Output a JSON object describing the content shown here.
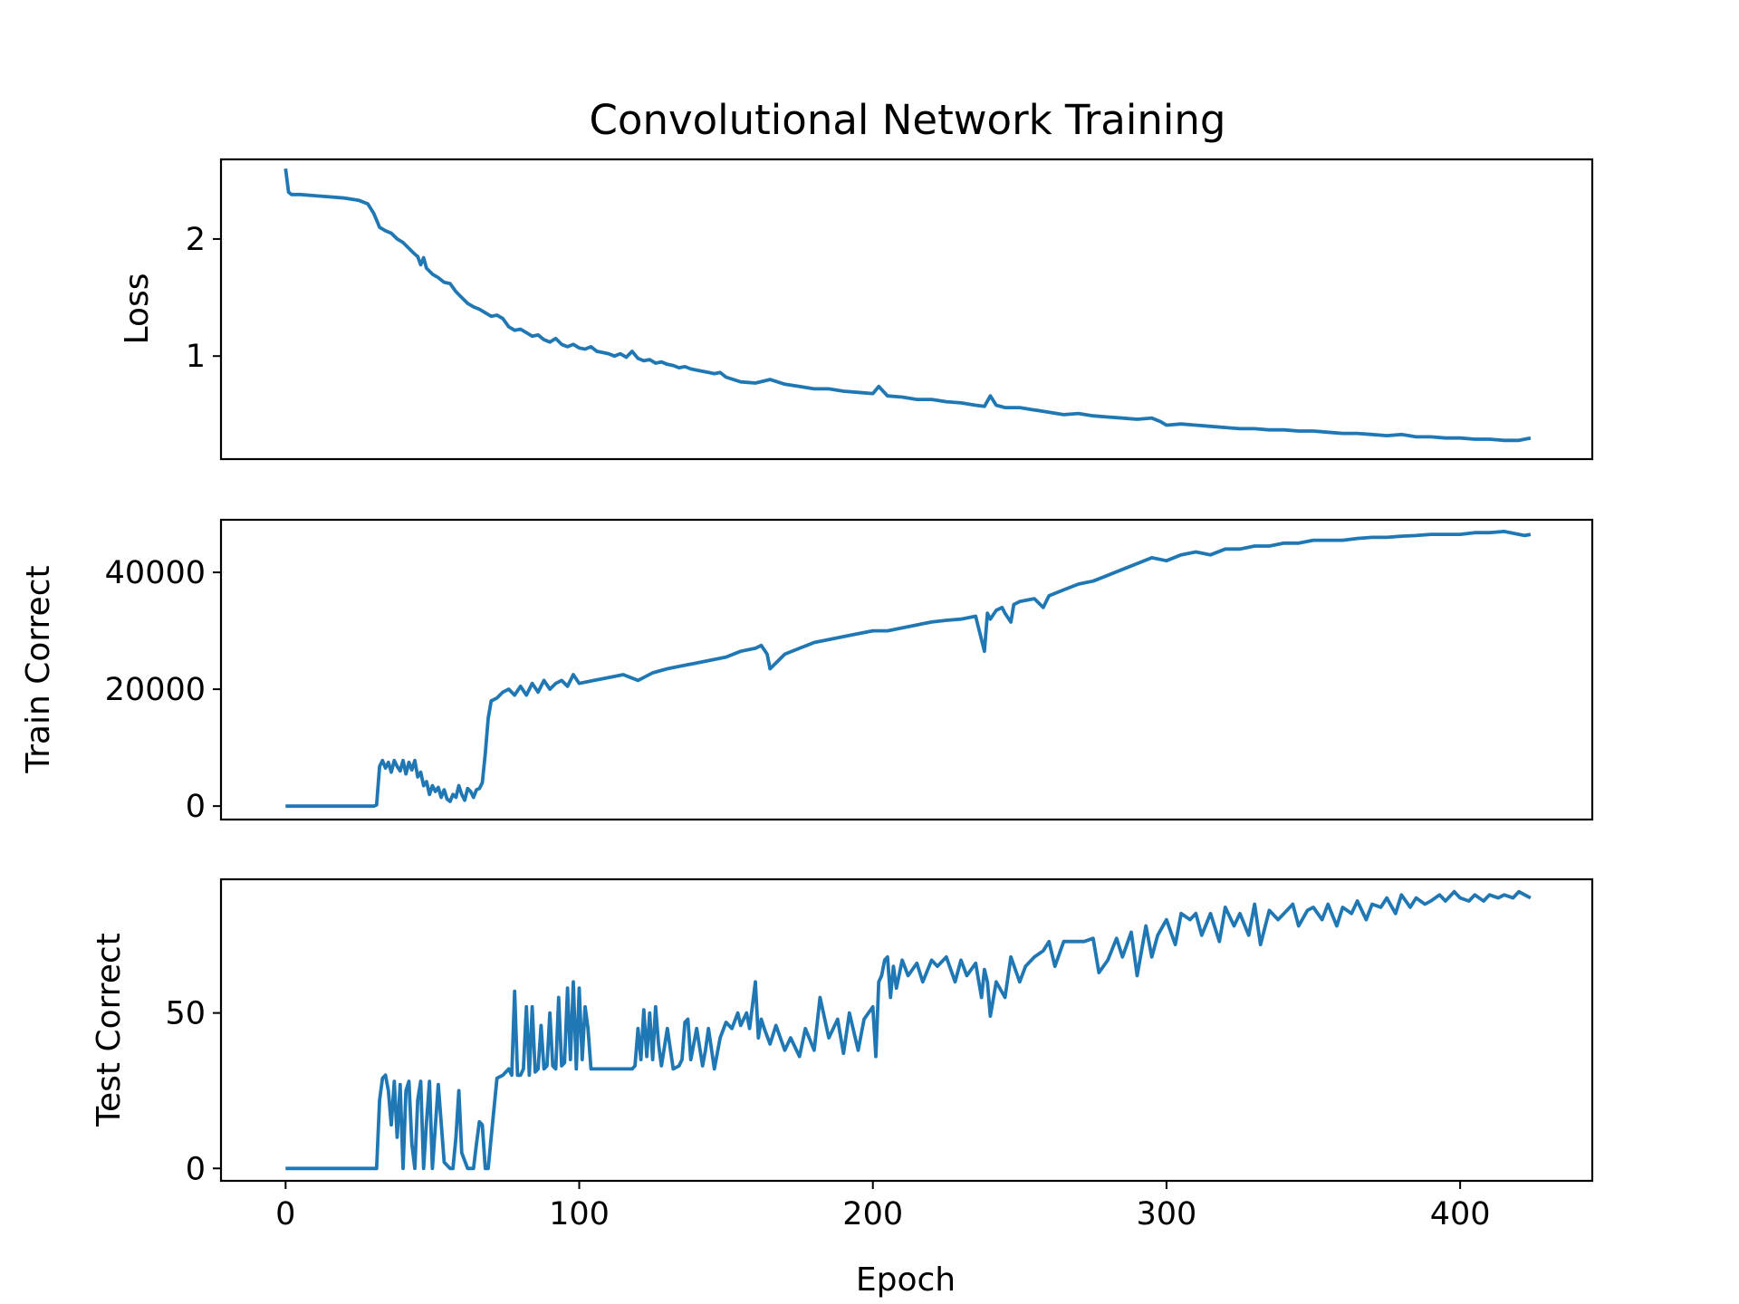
{
  "figure": {
    "title": "Convolutional Network Training",
    "xlabel": "Epoch",
    "line_color": "#1f77b4"
  },
  "chart_data": [
    {
      "type": "line",
      "title": "Convolutional Network Training",
      "xlabel": "",
      "ylabel": "Loss",
      "xlim": [
        -22,
        445
      ],
      "ylim": [
        0.12,
        2.68
      ],
      "xticks": [],
      "yticks": [
        1,
        2
      ],
      "ytick_labels": [
        "1",
        "2"
      ],
      "grid": false,
      "series": [
        {
          "x": [
            0,
            1,
            2,
            5,
            10,
            15,
            20,
            25,
            28,
            30,
            32,
            34,
            36,
            38,
            40,
            42,
            44,
            45,
            46,
            47,
            48,
            50,
            52,
            54,
            56,
            58,
            60,
            62,
            64,
            66,
            68,
            70,
            72,
            74,
            76,
            78,
            80,
            82,
            84,
            86,
            88,
            90,
            92,
            94,
            96,
            98,
            100,
            102,
            104,
            106,
            108,
            110,
            112,
            114,
            116,
            118,
            120,
            122,
            124,
            126,
            128,
            130,
            132,
            134,
            136,
            138,
            140,
            142,
            144,
            146,
            148,
            150,
            155,
            160,
            165,
            170,
            175,
            180,
            185,
            190,
            195,
            200,
            202,
            205,
            210,
            215,
            220,
            225,
            230,
            235,
            238,
            240,
            242,
            245,
            250,
            255,
            260,
            265,
            270,
            275,
            280,
            285,
            290,
            295,
            298,
            300,
            305,
            310,
            315,
            320,
            325,
            330,
            335,
            340,
            345,
            350,
            355,
            360,
            365,
            370,
            375,
            380,
            385,
            390,
            395,
            400,
            405,
            410,
            415,
            420,
            424
          ],
          "y": [
            2.6,
            2.4,
            2.38,
            2.38,
            2.37,
            2.36,
            2.35,
            2.33,
            2.3,
            2.22,
            2.1,
            2.07,
            2.05,
            2.0,
            1.97,
            1.92,
            1.87,
            1.85,
            1.78,
            1.84,
            1.75,
            1.7,
            1.67,
            1.63,
            1.62,
            1.55,
            1.5,
            1.45,
            1.42,
            1.4,
            1.37,
            1.34,
            1.35,
            1.32,
            1.25,
            1.22,
            1.23,
            1.2,
            1.17,
            1.18,
            1.14,
            1.12,
            1.15,
            1.1,
            1.08,
            1.1,
            1.07,
            1.06,
            1.08,
            1.04,
            1.03,
            1.02,
            1.0,
            1.02,
            0.99,
            1.04,
            0.98,
            0.96,
            0.97,
            0.94,
            0.95,
            0.93,
            0.92,
            0.9,
            0.91,
            0.89,
            0.88,
            0.87,
            0.86,
            0.85,
            0.86,
            0.82,
            0.78,
            0.77,
            0.8,
            0.76,
            0.74,
            0.72,
            0.72,
            0.7,
            0.69,
            0.68,
            0.74,
            0.66,
            0.65,
            0.63,
            0.63,
            0.61,
            0.6,
            0.58,
            0.57,
            0.66,
            0.58,
            0.56,
            0.56,
            0.54,
            0.52,
            0.5,
            0.51,
            0.49,
            0.48,
            0.47,
            0.46,
            0.47,
            0.44,
            0.41,
            0.42,
            0.41,
            0.4,
            0.39,
            0.38,
            0.38,
            0.37,
            0.37,
            0.36,
            0.36,
            0.35,
            0.34,
            0.34,
            0.33,
            0.32,
            0.33,
            0.31,
            0.31,
            0.3,
            0.3,
            0.29,
            0.29,
            0.28,
            0.28,
            0.3
          ]
        }
      ]
    },
    {
      "type": "line",
      "title": "",
      "xlabel": "",
      "ylabel": "Train Correct",
      "xlim": [
        -22,
        445
      ],
      "ylim": [
        -2300,
        49000
      ],
      "xticks": [],
      "yticks": [
        0,
        20000,
        40000
      ],
      "ytick_labels": [
        "0",
        "20000",
        "40000"
      ],
      "grid": false,
      "series": [
        {
          "x": [
            0,
            5,
            10,
            15,
            20,
            25,
            30,
            31,
            32,
            33,
            34,
            35,
            36,
            37,
            38,
            39,
            40,
            41,
            42,
            43,
            44,
            45,
            46,
            47,
            48,
            49,
            50,
            51,
            52,
            53,
            54,
            55,
            56,
            57,
            58,
            59,
            60,
            61,
            62,
            63,
            64,
            65,
            66,
            67,
            68,
            69,
            70,
            72,
            74,
            76,
            78,
            80,
            82,
            84,
            86,
            88,
            90,
            92,
            94,
            96,
            98,
            100,
            105,
            110,
            115,
            120,
            125,
            130,
            135,
            140,
            145,
            150,
            155,
            160,
            162,
            164,
            165,
            168,
            170,
            175,
            180,
            185,
            190,
            195,
            200,
            205,
            210,
            215,
            220,
            225,
            230,
            235,
            238,
            239,
            240,
            242,
            244,
            245,
            247,
            248,
            250,
            255,
            258,
            260,
            265,
            270,
            275,
            280,
            285,
            290,
            295,
            300,
            305,
            310,
            315,
            320,
            325,
            330,
            335,
            340,
            345,
            350,
            355,
            360,
            365,
            370,
            375,
            380,
            385,
            390,
            395,
            400,
            405,
            410,
            415,
            420,
            422,
            424
          ],
          "y": [
            0,
            0,
            0,
            0,
            0,
            0,
            0,
            200,
            6800,
            7800,
            6500,
            7500,
            5800,
            7800,
            6800,
            6000,
            7800,
            5500,
            7500,
            6200,
            7800,
            5000,
            5800,
            3500,
            4200,
            2000,
            3500,
            2500,
            3200,
            1500,
            2800,
            1200,
            800,
            2000,
            1500,
            3500,
            2000,
            1000,
            3000,
            2500,
            1500,
            2800,
            3000,
            4000,
            9000,
            15000,
            18000,
            18500,
            19500,
            20000,
            19000,
            20500,
            19000,
            21000,
            19500,
            21500,
            20000,
            21000,
            21500,
            20500,
            22500,
            21000,
            21500,
            22000,
            22500,
            21500,
            22800,
            23500,
            24000,
            24500,
            25000,
            25500,
            26500,
            27000,
            27500,
            26000,
            23500,
            25000,
            26000,
            27000,
            28000,
            28500,
            29000,
            29500,
            30000,
            30000,
            30500,
            31000,
            31500,
            31800,
            32000,
            32500,
            26500,
            33000,
            32000,
            33500,
            34000,
            33000,
            31500,
            34500,
            35000,
            35500,
            34000,
            36000,
            37000,
            38000,
            38500,
            39500,
            40500,
            41500,
            42500,
            42000,
            43000,
            43500,
            43000,
            44000,
            44000,
            44500,
            44500,
            45000,
            45000,
            45500,
            45500,
            45500,
            45800,
            46000,
            46000,
            46200,
            46300,
            46500,
            46500,
            46500,
            46800,
            46800,
            47000,
            46500,
            46300,
            46500
          ]
        }
      ]
    },
    {
      "type": "line",
      "title": "",
      "xlabel": "Epoch",
      "ylabel": "Test Correct",
      "xlim": [
        -22,
        445
      ],
      "ylim": [
        -4,
        93
      ],
      "xticks": [
        0,
        100,
        200,
        300,
        400
      ],
      "xtick_labels": [
        "0",
        "100",
        "200",
        "300",
        "400"
      ],
      "yticks": [
        0,
        50
      ],
      "ytick_labels": [
        "0",
        "50"
      ],
      "grid": false,
      "series": [
        {
          "x": [
            0,
            5,
            10,
            15,
            20,
            25,
            30,
            31,
            32,
            33,
            34,
            35,
            36,
            37,
            38,
            39,
            40,
            41,
            42,
            43,
            44,
            45,
            46,
            47,
            48,
            49,
            50,
            52,
            54,
            56,
            57,
            58,
            59,
            60,
            62,
            64,
            65,
            66,
            67,
            68,
            69,
            70,
            72,
            74,
            75,
            76,
            77,
            78,
            79,
            80,
            81,
            82,
            83,
            84,
            85,
            86,
            87,
            88,
            89,
            90,
            91,
            92,
            93,
            94,
            95,
            96,
            97,
            98,
            99,
            100,
            101,
            102,
            103,
            104,
            105,
            106,
            108,
            110,
            112,
            114,
            116,
            118,
            119,
            120,
            121,
            122,
            123,
            124,
            125,
            126,
            127,
            128,
            130,
            132,
            134,
            135,
            136,
            137,
            138,
            140,
            142,
            143,
            144,
            146,
            148,
            150,
            152,
            154,
            155,
            157,
            158,
            160,
            161,
            162,
            163,
            165,
            167,
            170,
            172,
            175,
            177,
            180,
            182,
            185,
            188,
            190,
            192,
            195,
            197,
            200,
            201,
            202,
            203,
            204,
            205,
            206,
            207,
            208,
            210,
            212,
            215,
            217,
            220,
            222,
            225,
            228,
            230,
            232,
            235,
            237,
            238,
            239,
            240,
            242,
            245,
            247,
            250,
            252,
            255,
            258,
            260,
            262,
            265,
            268,
            270,
            272,
            275,
            277,
            280,
            283,
            285,
            288,
            290,
            293,
            295,
            297,
            300,
            303,
            305,
            308,
            310,
            312,
            315,
            318,
            320,
            323,
            325,
            328,
            330,
            332,
            335,
            338,
            340,
            343,
            345,
            348,
            350,
            353,
            355,
            358,
            360,
            363,
            365,
            368,
            370,
            373,
            375,
            378,
            380,
            383,
            385,
            388,
            390,
            393,
            395,
            398,
            400,
            403,
            405,
            408,
            410,
            413,
            415,
            418,
            420,
            422,
            424
          ],
          "y": [
            0,
            0,
            0,
            0,
            0,
            0,
            0,
            0,
            22,
            29,
            30,
            25,
            14,
            28,
            10,
            27,
            0,
            25,
            28,
            8,
            0,
            22,
            28,
            0,
            15,
            28,
            0,
            27,
            2,
            0,
            0,
            10,
            25,
            5,
            0,
            0,
            8,
            15,
            14,
            0,
            0,
            10,
            29,
            30,
            31,
            32,
            30,
            57,
            30,
            30,
            32,
            52,
            30,
            52,
            31,
            32,
            46,
            32,
            33,
            50,
            33,
            32,
            55,
            33,
            34,
            58,
            35,
            60,
            32,
            58,
            35,
            52,
            45,
            32,
            32,
            32,
            32,
            32,
            32,
            32,
            32,
            32,
            33,
            45,
            35,
            51,
            36,
            50,
            35,
            52,
            40,
            33,
            45,
            32,
            33,
            35,
            47,
            48,
            35,
            45,
            33,
            38,
            45,
            32,
            42,
            47,
            45,
            50,
            46,
            50,
            45,
            60,
            42,
            48,
            45,
            40,
            46,
            38,
            42,
            36,
            45,
            38,
            55,
            42,
            48,
            37,
            50,
            38,
            48,
            52,
            36,
            60,
            62,
            67,
            68,
            55,
            65,
            58,
            67,
            62,
            66,
            60,
            67,
            65,
            68,
            60,
            67,
            62,
            66,
            55,
            64,
            60,
            49,
            60,
            55,
            68,
            60,
            65,
            68,
            70,
            73,
            65,
            73,
            73,
            73,
            73,
            74,
            63,
            67,
            74,
            68,
            76,
            62,
            78,
            68,
            75,
            80,
            72,
            82,
            80,
            82,
            75,
            82,
            73,
            84,
            78,
            82,
            75,
            85,
            72,
            83,
            80,
            82,
            85,
            78,
            83,
            84,
            80,
            85,
            78,
            84,
            82,
            86,
            80,
            85,
            84,
            87,
            82,
            88,
            84,
            87,
            85,
            86,
            88,
            86,
            89,
            87,
            86,
            88,
            86,
            88,
            87,
            88,
            87,
            89,
            88,
            87
          ]
        }
      ]
    }
  ]
}
